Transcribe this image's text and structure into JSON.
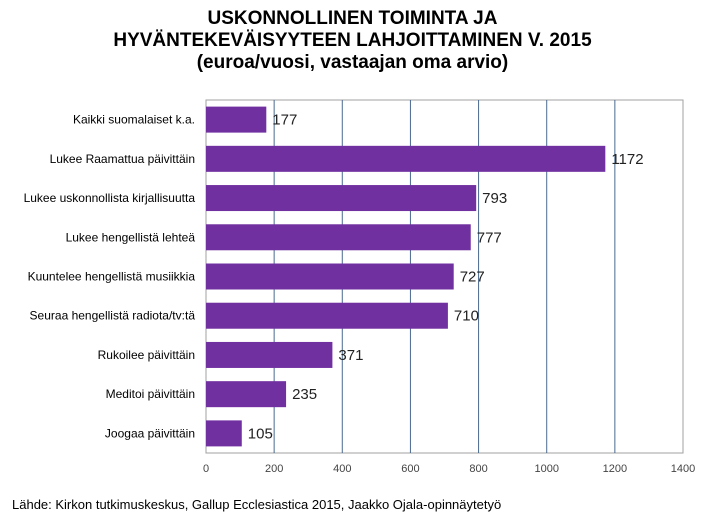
{
  "chart_data": {
    "type": "bar",
    "orientation": "horizontal",
    "title": [
      "USKONNOLLINEN TOIMINTA JA",
      "HYVÄNTEKEVÄISYYTEEN LAHJOITTAMINEN V. 2015",
      "(euroa/vuosi, vastaajan oma arvio)"
    ],
    "categories": [
      "Kaikki suomalaiset k.a.",
      "Lukee Raamattua päivittäin",
      "Lukee uskonnollista kirjallisuutta",
      "Lukee hengellistä lehteä",
      "Kuuntelee hengellistä musiikkia",
      "Seuraa hengellistä radiota/tv:tä",
      "Rukoilee päivittäin",
      "Meditoi päivittäin",
      "Joogaa päivittäin"
    ],
    "values": [
      177,
      1172,
      793,
      777,
      727,
      710,
      371,
      235,
      105
    ],
    "xlim": [
      0,
      1400
    ],
    "xticks": [
      0,
      200,
      400,
      600,
      800,
      1000,
      1200,
      1400
    ],
    "grid": true,
    "bar_color": "#7030a0",
    "grid_color": "#4a6a90"
  },
  "source": "Lähde: Kirkon tutkimuskeskus, Gallup Ecclesiastica 2015, Jaakko Ojala-opinnäytetyö"
}
